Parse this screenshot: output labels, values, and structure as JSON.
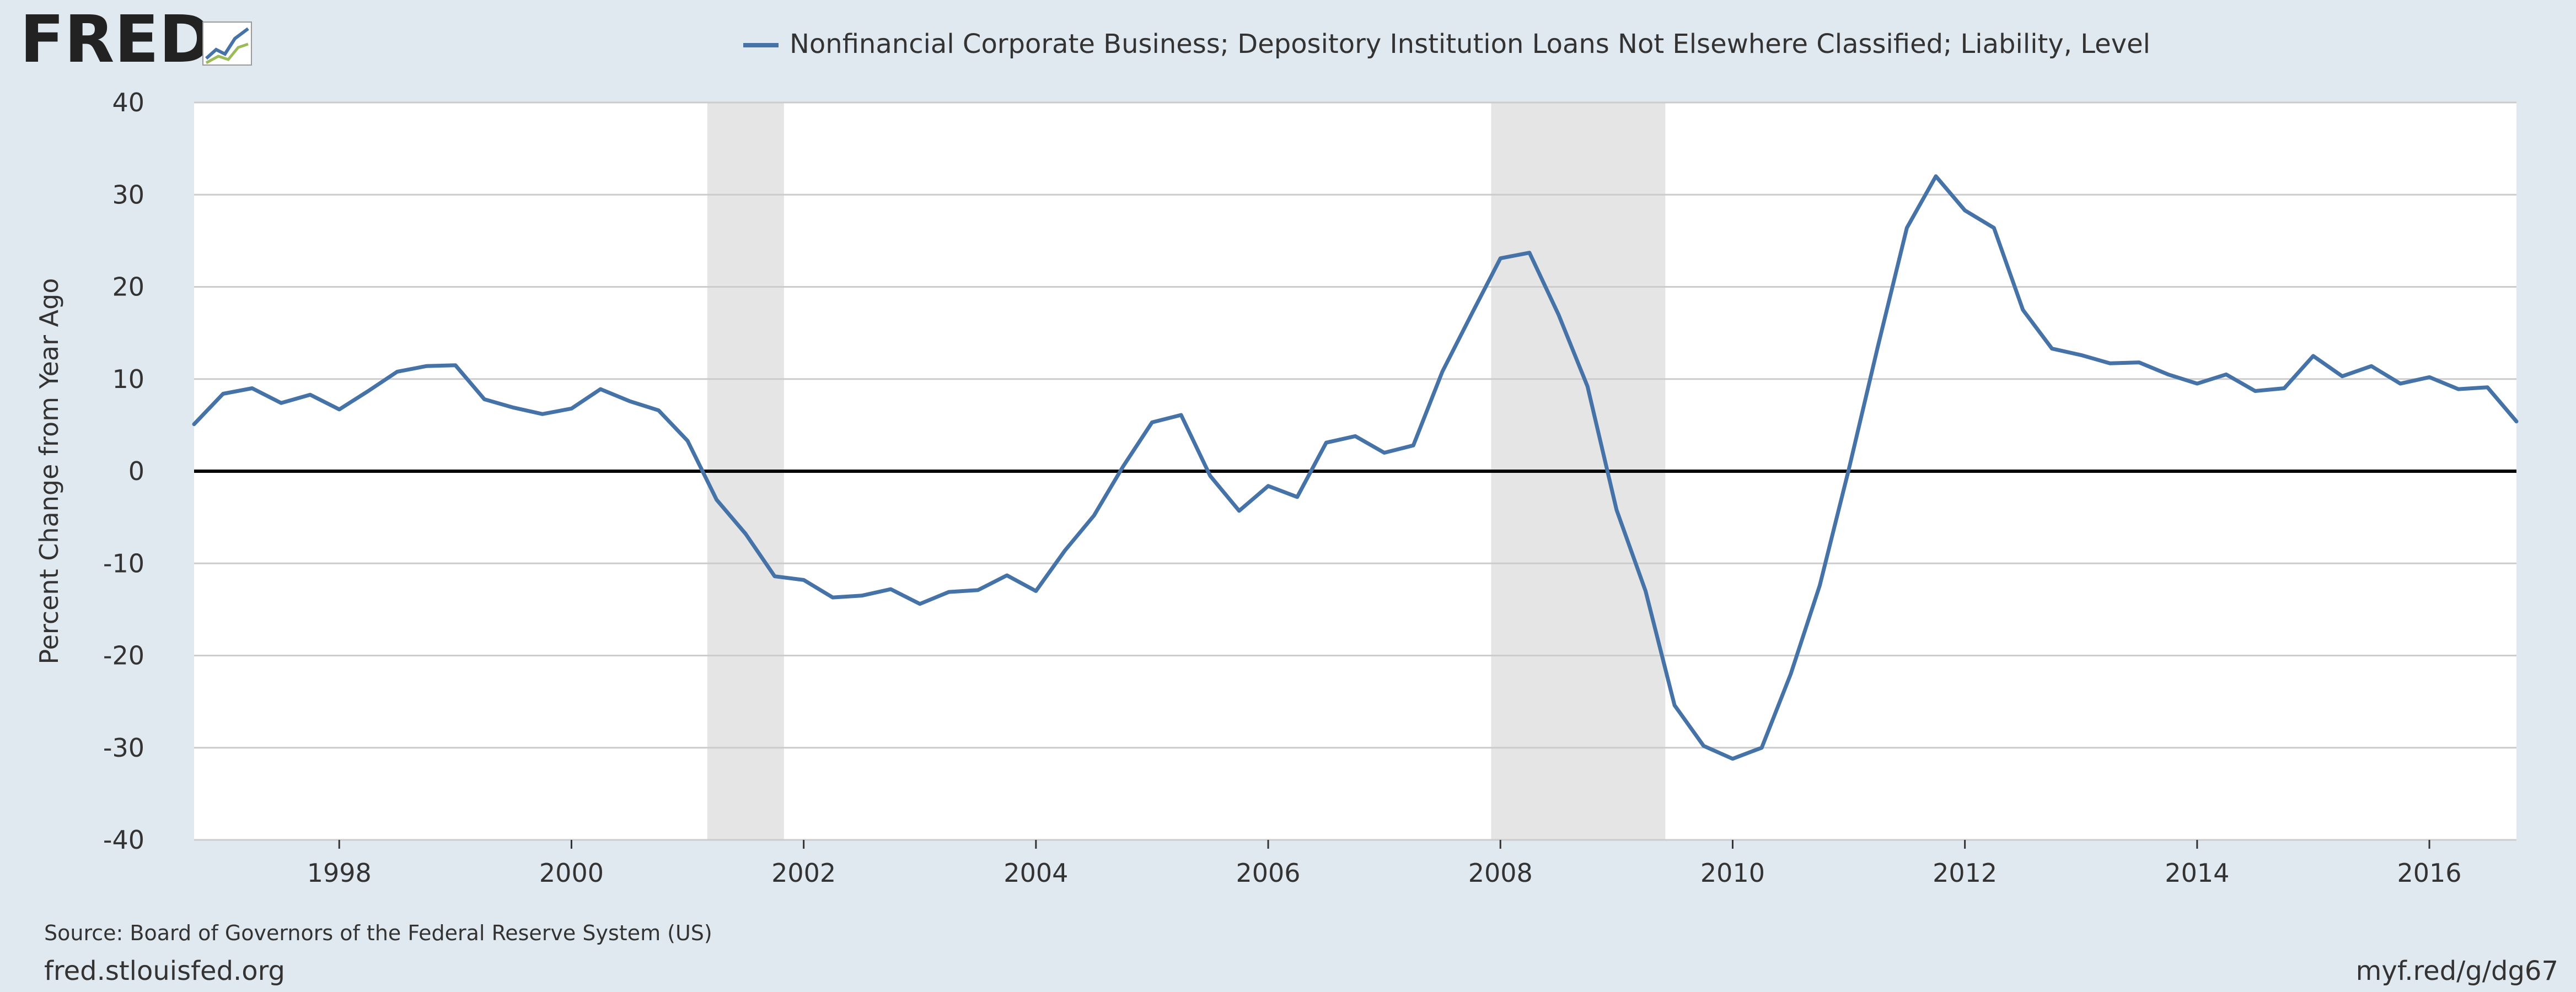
{
  "brand": {
    "logo_text": "FRED"
  },
  "legend": {
    "label": "Nonfinancial Corporate Business; Depository Institution Loans Not Elsewhere Classified; Liability, Level"
  },
  "footer": {
    "source": "Source: Board of Governors of the Federal Reserve System (US)",
    "site": "fred.stlouisfed.org",
    "shortlink": "myf.red/g/dg67"
  },
  "colors": {
    "page_background": "#e1e9f0",
    "plot_background": "#ffffff",
    "series_line": "#4572a7",
    "recession_band": "#e5e5e5",
    "grid": "#cccccc",
    "zero_line": "#000000"
  },
  "chart_data": {
    "type": "line",
    "title": "",
    "ylabel": "Percent Change from Year Ago",
    "xlabel": "",
    "xlim": [
      1996.75,
      2016.75
    ],
    "ylim": [
      -40,
      40
    ],
    "y_ticks": [
      40,
      30,
      20,
      10,
      0,
      -10,
      -20,
      -30,
      -40
    ],
    "x_ticks": [
      1998,
      2000,
      2002,
      2004,
      2006,
      2008,
      2010,
      2012,
      2014,
      2016
    ],
    "grid": true,
    "legend_position": "top-center",
    "recessions": [
      [
        2001.17,
        2001.83
      ],
      [
        2007.92,
        2009.42
      ]
    ],
    "series": [
      {
        "name": "Nonfinancial Corporate Business; Depository Institution Loans Not Elsewhere Classified; Liability, Level",
        "start": "1996-10-01",
        "frequency": "quarterly",
        "values": [
          5.1,
          8.4,
          9.0,
          7.4,
          8.3,
          6.7,
          8.7,
          10.8,
          11.4,
          11.5,
          7.8,
          6.9,
          6.2,
          6.8,
          8.9,
          7.6,
          6.6,
          3.3,
          -3.1,
          -6.8,
          -11.4,
          -11.8,
          -13.7,
          -13.5,
          -12.8,
          -14.4,
          -13.1,
          -12.9,
          -11.3,
          -13.0,
          -8.6,
          -4.8,
          0.5,
          5.3,
          6.1,
          -0.5,
          -4.3,
          -1.6,
          -2.8,
          3.1,
          3.8,
          2.0,
          2.8,
          10.8,
          17.0,
          23.1,
          23.7,
          17.0,
          9.2,
          -4.2,
          -13.0,
          -25.4,
          -29.8,
          -31.2,
          -30.0,
          -22.0,
          -12.4,
          0.2,
          13.5,
          26.4,
          32.0,
          28.3,
          26.4,
          17.5,
          13.3,
          12.6,
          11.7,
          11.8,
          10.5,
          9.5,
          10.5,
          8.7,
          9.0,
          12.5,
          10.3,
          11.4,
          9.5,
          10.2,
          8.9,
          9.1,
          5.4
        ]
      }
    ]
  }
}
